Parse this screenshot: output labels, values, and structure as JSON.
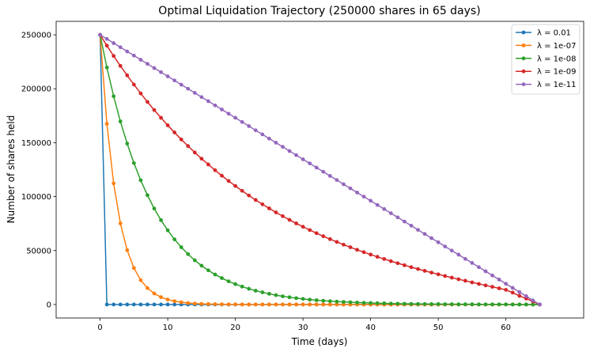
{
  "chart_data": {
    "type": "line",
    "title": "Optimal Liquidation Trajectory (250000 shares in 65 days)",
    "xlabel": "Time (days)",
    "ylabel": "Number of shares held",
    "xlim": [
      -6.5,
      71.5
    ],
    "ylim": [
      -12500,
      262500
    ],
    "xticks": [
      0,
      10,
      20,
      30,
      40,
      50,
      60
    ],
    "yticks": [
      0,
      50000,
      100000,
      150000,
      200000,
      250000
    ],
    "grid": false,
    "legend_position": "top-right",
    "x": [
      0,
      1,
      2,
      3,
      4,
      5,
      6,
      7,
      8,
      9,
      10,
      11,
      12,
      13,
      14,
      15,
      16,
      17,
      18,
      19,
      20,
      21,
      22,
      23,
      24,
      25,
      26,
      27,
      28,
      29,
      30,
      31,
      32,
      33,
      34,
      35,
      36,
      37,
      38,
      39,
      40,
      41,
      42,
      43,
      44,
      45,
      46,
      47,
      48,
      49,
      50,
      51,
      52,
      53,
      54,
      55,
      56,
      57,
      58,
      59,
      60,
      61,
      62,
      63,
      64,
      65
    ],
    "series": [
      {
        "name": "λ = 0.01",
        "color": "#1f77b4",
        "values": [
          250000,
          0,
          0,
          0,
          0,
          0,
          0,
          0,
          0,
          0,
          0,
          0,
          0,
          0,
          0,
          0,
          0,
          0,
          0,
          0,
          0,
          0,
          0,
          0,
          0,
          0,
          0,
          0,
          0,
          0,
          0,
          0,
          0,
          0,
          0,
          0,
          0,
          0,
          0,
          0,
          0,
          0,
          0,
          0,
          0,
          0,
          0,
          0,
          0,
          0,
          0,
          0,
          0,
          0,
          0,
          0,
          0,
          0,
          0,
          0,
          0,
          0,
          0,
          0,
          0,
          0
        ]
      },
      {
        "name": "λ = 1e-07",
        "color": "#ff7f0e",
        "values": [
          250000,
          167500,
          112300,
          75200,
          50400,
          33800,
          22600,
          15200,
          10200,
          6800,
          4600,
          3100,
          2100,
          1400,
          900,
          600,
          400,
          300,
          200,
          100,
          100,
          0,
          0,
          0,
          0,
          0,
          0,
          0,
          0,
          0,
          0,
          0,
          0,
          0,
          0,
          0,
          0,
          0,
          0,
          0,
          0,
          0,
          0,
          0,
          0,
          0,
          0,
          0,
          0,
          0,
          0,
          0,
          0,
          0,
          0,
          0,
          0,
          0,
          0,
          0,
          0,
          0,
          0,
          0,
          0,
          0
        ]
      },
      {
        "name": "λ = 1e-08",
        "color": "#2ca02c",
        "values": [
          250000,
          219700,
          193100,
          169700,
          149200,
          131100,
          115200,
          101300,
          89000,
          78200,
          68800,
          60400,
          53100,
          46700,
          41000,
          36000,
          31700,
          27800,
          24500,
          21500,
          18900,
          16600,
          14600,
          12800,
          11300,
          9900,
          8700,
          7600,
          6700,
          5900,
          5200,
          4500,
          4000,
          3500,
          3100,
          2700,
          2400,
          2100,
          1800,
          1600,
          1400,
          1200,
          1100,
          900,
          800,
          700,
          600,
          500,
          500,
          400,
          400,
          300,
          300,
          200,
          200,
          200,
          100,
          100,
          100,
          100,
          100,
          0,
          0,
          0,
          0,
          0
        ]
      },
      {
        "name": "λ = 1e-09",
        "color": "#d62728",
        "values": [
          250000,
          240000,
          230400,
          221200,
          212400,
          203900,
          195700,
          187800,
          180300,
          173100,
          166100,
          159500,
          153000,
          146900,
          140900,
          135200,
          129800,
          124500,
          119400,
          114500,
          109900,
          105400,
          101100,
          96900,
          92900,
          89100,
          85400,
          81900,
          78500,
          75200,
          72100,
          69000,
          66100,
          63300,
          60600,
          58000,
          55500,
          53100,
          50700,
          48500,
          46300,
          44200,
          42200,
          40200,
          38300,
          36400,
          34600,
          32900,
          31200,
          29600,
          28000,
          26400,
          24900,
          23400,
          22000,
          20500,
          19100,
          17700,
          16400,
          15000,
          13600,
          11000,
          8000,
          5500,
          2800,
          0
        ]
      },
      {
        "name": "λ = 1e-11",
        "color": "#9467bd",
        "values": [
          250000,
          246200,
          242300,
          238500,
          234600,
          230800,
          226900,
          223100,
          219200,
          215400,
          211500,
          207700,
          203800,
          200000,
          196200,
          192300,
          188500,
          184600,
          180800,
          176900,
          173100,
          169200,
          165400,
          161500,
          157700,
          153800,
          150000,
          146200,
          142300,
          138500,
          134600,
          130800,
          126900,
          123100,
          119200,
          115400,
          111500,
          107700,
          103800,
          100000,
          96200,
          92300,
          88500,
          84600,
          80800,
          76900,
          73100,
          69200,
          65400,
          61500,
          57700,
          53800,
          50000,
          46200,
          42300,
          38500,
          34600,
          30800,
          26900,
          23100,
          19200,
          15400,
          11500,
          7700,
          3800,
          0
        ]
      }
    ]
  }
}
